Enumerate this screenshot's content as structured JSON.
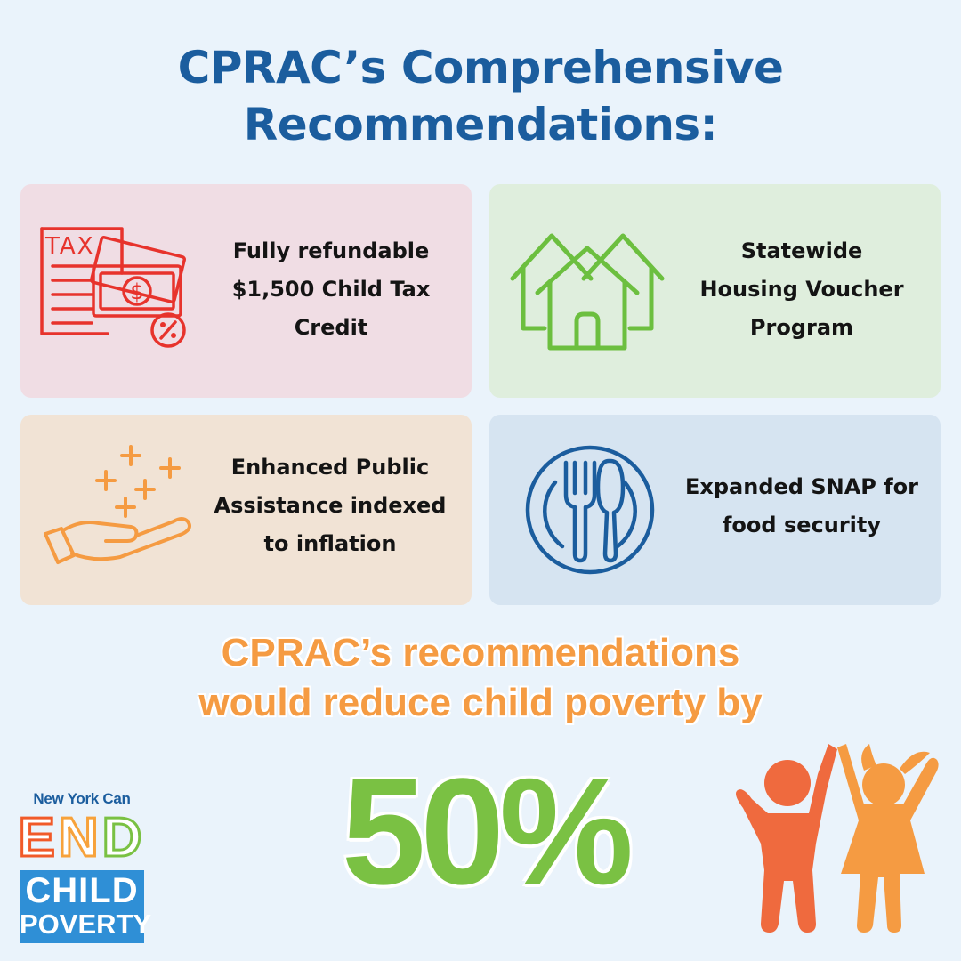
{
  "title": {
    "line1": "CPRAC’s Comprehensive",
    "line2": "Recommendations:"
  },
  "cards": [
    {
      "icon": "tax-money-icon",
      "color": "#e7332c",
      "background": "#f0dde4",
      "lines": [
        "Fully refundable",
        "$1,500 Child Tax",
        "Credit"
      ],
      "icon_text": "TAX"
    },
    {
      "icon": "houses-icon",
      "color": "#6cbf3f",
      "background": "#dfeedd",
      "lines": [
        "Statewide",
        "Housing Voucher",
        "Program"
      ]
    },
    {
      "icon": "hand-sparkle-icon",
      "color": "#f59b42",
      "background": "#f1e3d5",
      "lines": [
        "Enhanced Public",
        "Assistance indexed",
        "to inflation"
      ]
    },
    {
      "icon": "plate-fork-spoon-icon",
      "color": "#1b5d9e",
      "background": "#d6e4f1",
      "lines": [
        "Expanded SNAP for",
        "food security"
      ]
    }
  ],
  "headline": {
    "line1": "CPRAC’s recommendations",
    "line2": "would reduce child poverty by"
  },
  "percent": "50%",
  "logo": {
    "line1": "New York Can",
    "end": "END",
    "child": "CHILD",
    "poverty": "POVERTY"
  },
  "colors": {
    "title": "#1b5d9e",
    "headline": "#f59b42",
    "percent": "#7ac143",
    "kid_boy": "#ef6a3e",
    "kid_girl": "#f59b42"
  }
}
